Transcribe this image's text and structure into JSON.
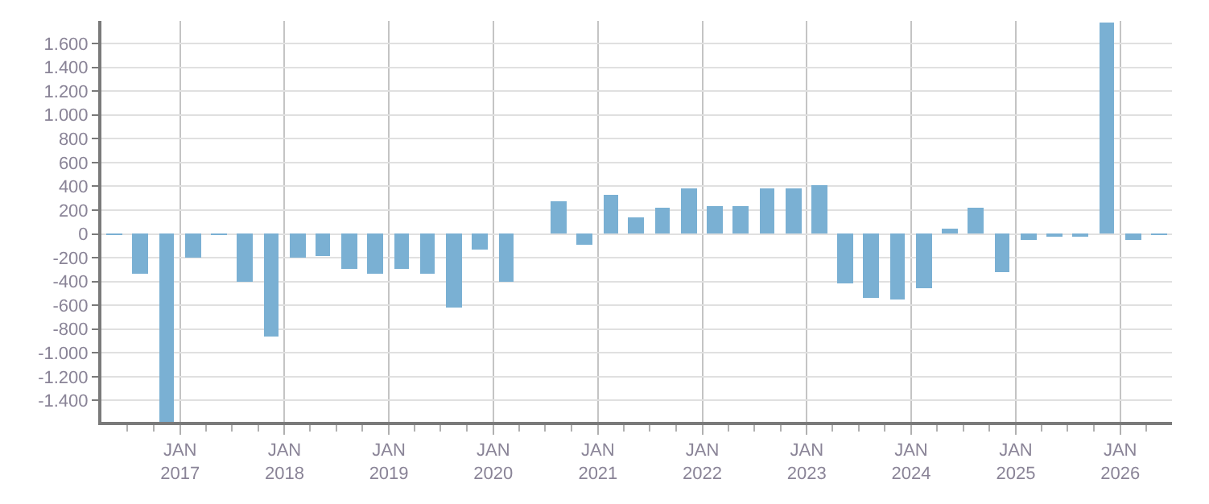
{
  "chart_data": {
    "type": "bar",
    "color": "#7ab0d3",
    "x": [
      "2016-05-15",
      "2016-08-15",
      "2016-11-15",
      "2017-02-15",
      "2017-05-15",
      "2017-08-15",
      "2017-11-15",
      "2018-02-15",
      "2018-05-15",
      "2018-08-15",
      "2018-11-15",
      "2019-02-15",
      "2019-05-15",
      "2019-08-15",
      "2019-11-15",
      "2020-02-15",
      "2020-05-15",
      "2020-08-15",
      "2020-11-15",
      "2021-02-15",
      "2021-05-15",
      "2021-08-15",
      "2021-11-15",
      "2022-02-15",
      "2022-05-15",
      "2022-08-15",
      "2022-11-15",
      "2023-02-15",
      "2023-05-15",
      "2023-08-15",
      "2023-11-15",
      "2024-02-15",
      "2024-05-15",
      "2024-08-15",
      "2024-11-15",
      "2025-02-15",
      "2025-05-15",
      "2025-08-15",
      "2025-11-15",
      "2026-02-15",
      "2026-05-15"
    ],
    "values": [
      -10,
      -340,
      -1580,
      -200,
      -10,
      -400,
      -860,
      -200,
      -180,
      -300,
      -340,
      -290,
      -330,
      -620,
      -130,
      -400,
      0,
      280,
      -90,
      330,
      140,
      220,
      380,
      240,
      230,
      380,
      380,
      410,
      -410,
      -540,
      -550,
      -450,
      40,
      220,
      -320,
      -50,
      -20,
      -20,
      1780,
      -50,
      -10
    ],
    "xlim": [
      "2016-04-01",
      "2026-07-01"
    ],
    "xticks": [
      {
        "value": "2016-07",
        "label": null
      },
      {
        "value": "2016-10",
        "label": null
      },
      {
        "value": "2017-01",
        "label": "JAN\n2017"
      },
      {
        "value": "2017-04",
        "label": null
      },
      {
        "value": "2017-07",
        "label": null
      },
      {
        "value": "2017-10",
        "label": null
      },
      {
        "value": "2018-01",
        "label": "JAN\n2018"
      },
      {
        "value": "2018-04",
        "label": null
      },
      {
        "value": "2018-07",
        "label": null
      },
      {
        "value": "2018-10",
        "label": null
      },
      {
        "value": "2019-01",
        "label": "JAN\n2019"
      },
      {
        "value": "2019-04",
        "label": null
      },
      {
        "value": "2019-07",
        "label": null
      },
      {
        "value": "2019-10",
        "label": null
      },
      {
        "value": "2020-01",
        "label": "JAN\n2020"
      },
      {
        "value": "2020-04",
        "label": null
      },
      {
        "value": "2020-07",
        "label": null
      },
      {
        "value": "2020-10",
        "label": null
      },
      {
        "value": "2021-01",
        "label": "JAN\n2021"
      },
      {
        "value": "2021-04",
        "label": null
      },
      {
        "value": "2021-07",
        "label": null
      },
      {
        "value": "2021-10",
        "label": null
      },
      {
        "value": "2022-01",
        "label": "JAN\n2022"
      },
      {
        "value": "2022-04",
        "label": null
      },
      {
        "value": "2022-07",
        "label": null
      },
      {
        "value": "2022-10",
        "label": null
      },
      {
        "value": "2023-01",
        "label": "JAN\n2023"
      },
      {
        "value": "2023-04",
        "label": null
      },
      {
        "value": "2023-07",
        "label": null
      },
      {
        "value": "2023-10",
        "label": null
      },
      {
        "value": "2024-01",
        "label": "JAN\n2024"
      },
      {
        "value": "2024-04",
        "label": null
      },
      {
        "value": "2024-07",
        "label": null
      },
      {
        "value": "2024-10",
        "label": null
      },
      {
        "value": "2025-01",
        "label": "JAN\n2025"
      },
      {
        "value": "2025-04",
        "label": null
      },
      {
        "value": "2025-07",
        "label": null
      },
      {
        "value": "2025-10",
        "label": null
      },
      {
        "value": "2026-01",
        "label": "JAN\n2026"
      },
      {
        "value": "2026-04",
        "label": null
      }
    ],
    "ylim": [
      -1580,
      1790
    ],
    "yticks": [
      {
        "value": -1400,
        "label": "-1.400"
      },
      {
        "value": -1200,
        "label": "-1.200"
      },
      {
        "value": -1000,
        "label": "-1.000"
      },
      -800,
      -600,
      -400,
      -200,
      0,
      200,
      400,
      600,
      800,
      {
        "value": 1000,
        "label": "1.000"
      },
      {
        "value": 1200,
        "label": "1.200"
      },
      {
        "value": 1400,
        "label": "1.400"
      },
      {
        "value": 1600,
        "label": "1.600"
      }
    ],
    "grid": true
  }
}
